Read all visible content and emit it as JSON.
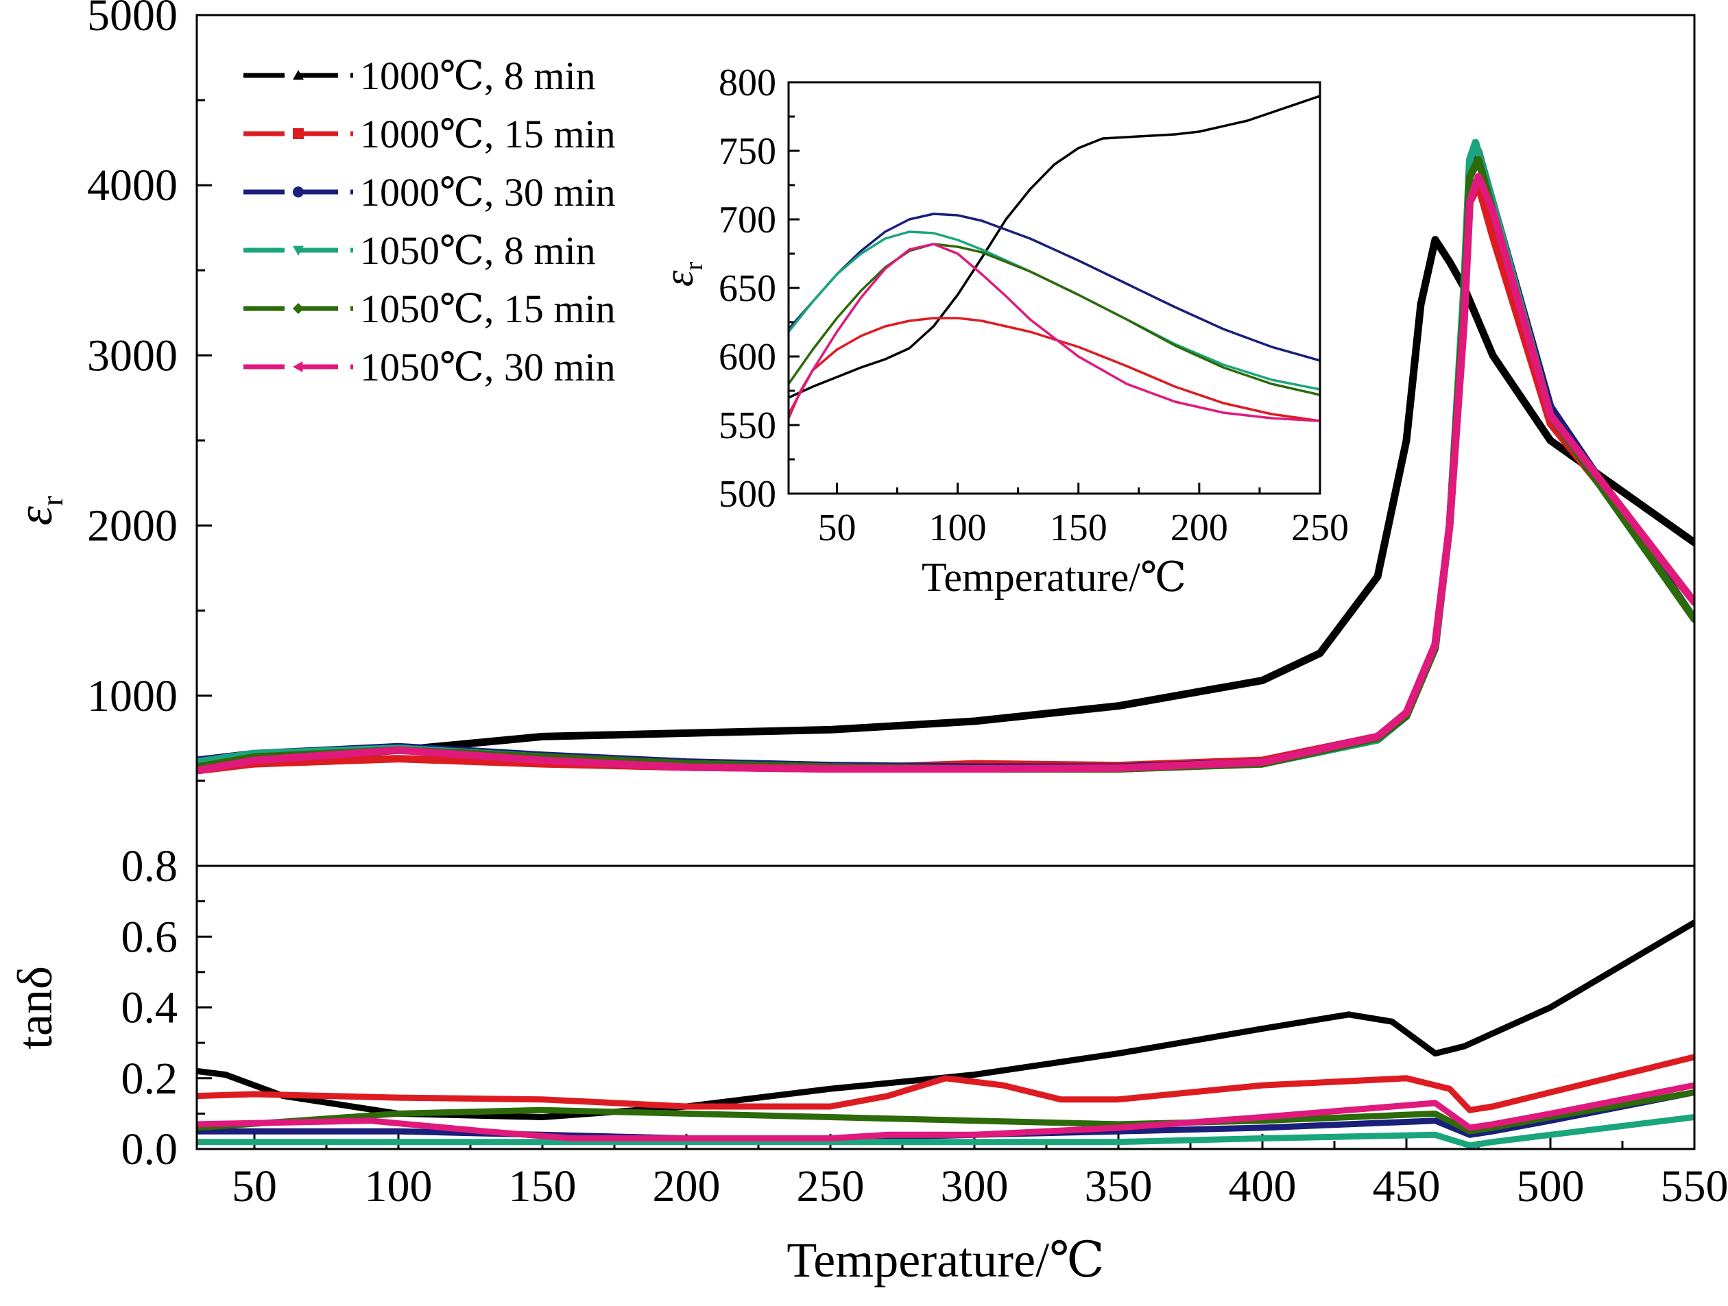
{
  "chart_data": [
    {
      "id": "main-er",
      "type": "line",
      "xlabel": "Temperature/℃",
      "ylabel_symbol": "ε",
      "ylabel_sub": "r",
      "xlim": [
        30,
        550
      ],
      "ylim": [
        0,
        5000
      ],
      "xticks": [
        50,
        100,
        150,
        200,
        250,
        300,
        350,
        400,
        450,
        500,
        550
      ],
      "yticks": [
        1000,
        2000,
        3000,
        4000,
        5000
      ],
      "legend_position": "top-left",
      "series": [
        {
          "name": "1000℃, 8 min",
          "color": "#000000",
          "marker": "triangle-up",
          "x": [
            30,
            50,
            100,
            150,
            200,
            250,
            300,
            350,
            400,
            420,
            440,
            450,
            455,
            460,
            465,
            470,
            480,
            500,
            550
          ],
          "y": [
            600,
            610,
            680,
            760,
            780,
            800,
            850,
            940,
            1090,
            1250,
            1700,
            2500,
            3300,
            3680,
            3550,
            3400,
            3000,
            2500,
            1900
          ]
        },
        {
          "name": "1000℃, 15 min",
          "color": "#dd1c22",
          "marker": "square",
          "x": [
            30,
            50,
            100,
            150,
            200,
            250,
            300,
            350,
            400,
            440,
            450,
            460,
            465,
            470,
            472,
            475,
            480,
            500,
            550
          ],
          "y": [
            560,
            600,
            630,
            600,
            580,
            570,
            600,
            590,
            620,
            760,
            900,
            1300,
            2000,
            3200,
            3900,
            4000,
            3700,
            2600,
            1550
          ]
        },
        {
          "name": "1000℃, 30 min",
          "color": "#1a1f7a",
          "marker": "circle",
          "x": [
            30,
            50,
            100,
            150,
            200,
            250,
            300,
            350,
            400,
            440,
            450,
            460,
            465,
            470,
            472,
            475,
            480,
            500,
            550
          ],
          "y": [
            620,
            660,
            700,
            650,
            610,
            590,
            580,
            580,
            610,
            760,
            900,
            1300,
            2000,
            3300,
            4100,
            4200,
            3900,
            2700,
            1450
          ]
        },
        {
          "name": "1050℃, 8 min",
          "color": "#1aa57d",
          "marker": "triangle-down",
          "x": [
            30,
            50,
            100,
            150,
            200,
            250,
            300,
            350,
            400,
            440,
            450,
            460,
            465,
            470,
            472,
            474,
            480,
            500,
            550
          ],
          "y": [
            610,
            660,
            690,
            640,
            600,
            580,
            570,
            570,
            600,
            740,
            880,
            1280,
            2000,
            3400,
            4150,
            4250,
            3900,
            2650,
            1450
          ]
        },
        {
          "name": "1050℃, 15 min",
          "color": "#2d6a0a",
          "marker": "diamond",
          "x": [
            30,
            50,
            100,
            150,
            200,
            250,
            300,
            350,
            400,
            440,
            450,
            460,
            465,
            470,
            472,
            475,
            480,
            500,
            550
          ],
          "y": [
            580,
            640,
            680,
            640,
            600,
            580,
            570,
            570,
            600,
            750,
            880,
            1280,
            2000,
            3300,
            4050,
            4150,
            3850,
            2650,
            1450
          ]
        },
        {
          "name": "1050℃, 30 min",
          "color": "#e0197d",
          "marker": "triangle-left",
          "x": [
            30,
            50,
            100,
            150,
            200,
            250,
            300,
            350,
            400,
            440,
            450,
            460,
            465,
            470,
            472,
            475,
            480,
            500,
            550
          ],
          "y": [
            560,
            620,
            680,
            620,
            580,
            570,
            570,
            575,
            610,
            760,
            900,
            1300,
            2000,
            3200,
            3900,
            4050,
            3850,
            2650,
            1550
          ]
        }
      ]
    },
    {
      "id": "main-tand",
      "type": "line",
      "xlabel": "Temperature/℃",
      "ylabel": "tanδ",
      "xlim": [
        30,
        550
      ],
      "ylim": [
        0,
        0.8
      ],
      "yticks": [
        0.0,
        0.2,
        0.4,
        0.6,
        0.8
      ],
      "series": [
        {
          "name": "1000℃, 8 min",
          "color": "#000000",
          "x": [
            30,
            40,
            60,
            100,
            150,
            200,
            250,
            300,
            350,
            400,
            430,
            445,
            455,
            460,
            470,
            500,
            550
          ],
          "y": [
            0.22,
            0.21,
            0.15,
            0.1,
            0.09,
            0.12,
            0.17,
            0.21,
            0.27,
            0.34,
            0.38,
            0.36,
            0.3,
            0.27,
            0.29,
            0.4,
            0.64
          ]
        },
        {
          "name": "1000℃, 15 min",
          "color": "#dd1c22",
          "x": [
            30,
            50,
            100,
            150,
            200,
            250,
            270,
            290,
            310,
            330,
            350,
            400,
            450,
            465,
            472,
            480,
            500,
            550
          ],
          "y": [
            0.15,
            0.155,
            0.145,
            0.14,
            0.12,
            0.12,
            0.15,
            0.2,
            0.18,
            0.14,
            0.14,
            0.18,
            0.2,
            0.17,
            0.11,
            0.12,
            0.16,
            0.26
          ]
        },
        {
          "name": "1000℃, 30 min",
          "color": "#1a1f7a",
          "x": [
            30,
            100,
            150,
            200,
            250,
            300,
            350,
            400,
            460,
            472,
            480,
            500,
            550
          ],
          "y": [
            0.05,
            0.05,
            0.04,
            0.03,
            0.03,
            0.04,
            0.05,
            0.06,
            0.08,
            0.04,
            0.05,
            0.08,
            0.16
          ]
        },
        {
          "name": "1050℃, 8 min",
          "color": "#1aa57d",
          "x": [
            30,
            100,
            150,
            200,
            250,
            300,
            350,
            400,
            460,
            472,
            480,
            500,
            550
          ],
          "y": [
            0.02,
            0.02,
            0.02,
            0.02,
            0.02,
            0.02,
            0.02,
            0.03,
            0.04,
            0.01,
            0.02,
            0.04,
            0.09
          ]
        },
        {
          "name": "1050℃, 15 min",
          "color": "#2d6a0a",
          "x": [
            30,
            100,
            150,
            200,
            250,
            300,
            350,
            400,
            460,
            472,
            480,
            500,
            550
          ],
          "y": [
            0.06,
            0.1,
            0.11,
            0.1,
            0.09,
            0.08,
            0.07,
            0.08,
            0.1,
            0.05,
            0.06,
            0.09,
            0.16
          ]
        },
        {
          "name": "1050℃, 30 min",
          "color": "#e0197d",
          "x": [
            30,
            90,
            130,
            160,
            200,
            250,
            270,
            300,
            350,
            400,
            460,
            472,
            480,
            500,
            550
          ],
          "y": [
            0.07,
            0.08,
            0.05,
            0.03,
            0.03,
            0.03,
            0.04,
            0.04,
            0.06,
            0.09,
            0.13,
            0.06,
            0.07,
            0.1,
            0.18
          ]
        }
      ]
    },
    {
      "id": "inset-er",
      "type": "line",
      "xlabel": "Temperature/℃",
      "ylabel_symbol": "ε",
      "ylabel_sub": "r",
      "xlim": [
        30,
        250
      ],
      "ylim": [
        500,
        800
      ],
      "xticks": [
        50,
        100,
        150,
        200,
        250
      ],
      "yticks": [
        500,
        550,
        600,
        650,
        700,
        750,
        800
      ],
      "series": [
        {
          "name": "1000℃, 8 min",
          "color": "#000000",
          "x": [
            30,
            40,
            50,
            60,
            70,
            80,
            90,
            100,
            110,
            120,
            130,
            140,
            150,
            160,
            170,
            180,
            190,
            200,
            220,
            250
          ],
          "y": [
            570,
            578,
            585,
            592,
            598,
            606,
            622,
            645,
            672,
            700,
            722,
            740,
            752,
            759,
            760,
            761,
            762,
            764,
            772,
            790
          ]
        },
        {
          "name": "1000℃, 15 min",
          "color": "#dd1c22",
          "x": [
            30,
            35,
            40,
            50,
            60,
            70,
            80,
            90,
            100,
            110,
            130,
            150,
            170,
            190,
            210,
            230,
            250
          ],
          "y": [
            555,
            575,
            590,
            605,
            615,
            622,
            626,
            628,
            628,
            626,
            618,
            607,
            593,
            578,
            566,
            558,
            553
          ]
        },
        {
          "name": "1000℃, 30 min",
          "color": "#1a1f7a",
          "x": [
            30,
            40,
            50,
            60,
            70,
            80,
            90,
            100,
            110,
            130,
            150,
            170,
            190,
            210,
            230,
            250
          ],
          "y": [
            620,
            640,
            660,
            677,
            691,
            700,
            704,
            703,
            699,
            686,
            670,
            653,
            636,
            620,
            607,
            597
          ]
        },
        {
          "name": "1050℃, 8 min",
          "color": "#1aa57d",
          "x": [
            30,
            40,
            50,
            60,
            70,
            80,
            90,
            100,
            110,
            130,
            150,
            170,
            190,
            210,
            230,
            250
          ],
          "y": [
            618,
            640,
            660,
            675,
            686,
            691,
            690,
            685,
            678,
            662,
            645,
            627,
            609,
            594,
            583,
            576
          ]
        },
        {
          "name": "1050℃, 15 min",
          "color": "#2d6a0a",
          "x": [
            30,
            40,
            50,
            60,
            70,
            80,
            90,
            100,
            110,
            130,
            150,
            170,
            190,
            210,
            230,
            250
          ],
          "y": [
            580,
            605,
            628,
            648,
            665,
            677,
            682,
            680,
            676,
            662,
            645,
            627,
            608,
            592,
            580,
            572
          ]
        },
        {
          "name": "1050℃, 30 min",
          "color": "#e0197d",
          "x": [
            30,
            40,
            50,
            60,
            70,
            80,
            90,
            100,
            110,
            120,
            130,
            150,
            170,
            190,
            210,
            230,
            250
          ],
          "y": [
            558,
            590,
            618,
            643,
            664,
            678,
            682,
            675,
            660,
            644,
            627,
            600,
            580,
            567,
            559,
            555,
            553
          ]
        }
      ]
    }
  ]
}
